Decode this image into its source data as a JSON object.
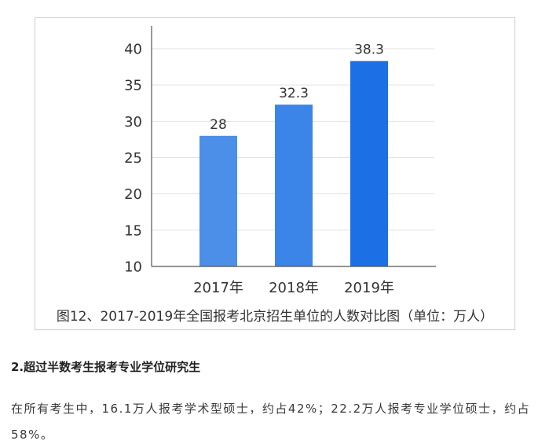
{
  "chart_data": {
    "type": "bar",
    "title": "图12、2017-2019年全国报考北京招生单位的人数对比图（单位：万人）",
    "categories": [
      "2017年",
      "2018年",
      "2019年"
    ],
    "values": [
      28,
      32.3,
      38.3
    ],
    "ylim": [
      10,
      40
    ],
    "yticks": [
      10,
      15,
      20,
      25,
      30,
      35,
      40
    ],
    "grid": true,
    "bar_colors": [
      "#4b8fe9",
      "#3c85e8",
      "#1d6fe5"
    ]
  },
  "article": {
    "heading": "2.超过半数考生报考专业学位研究生",
    "paragraph": "在所有考生中，16.1万人报考学术型硕士，约占42%；22.2万人报考专业学位硕士，约占58%。"
  }
}
